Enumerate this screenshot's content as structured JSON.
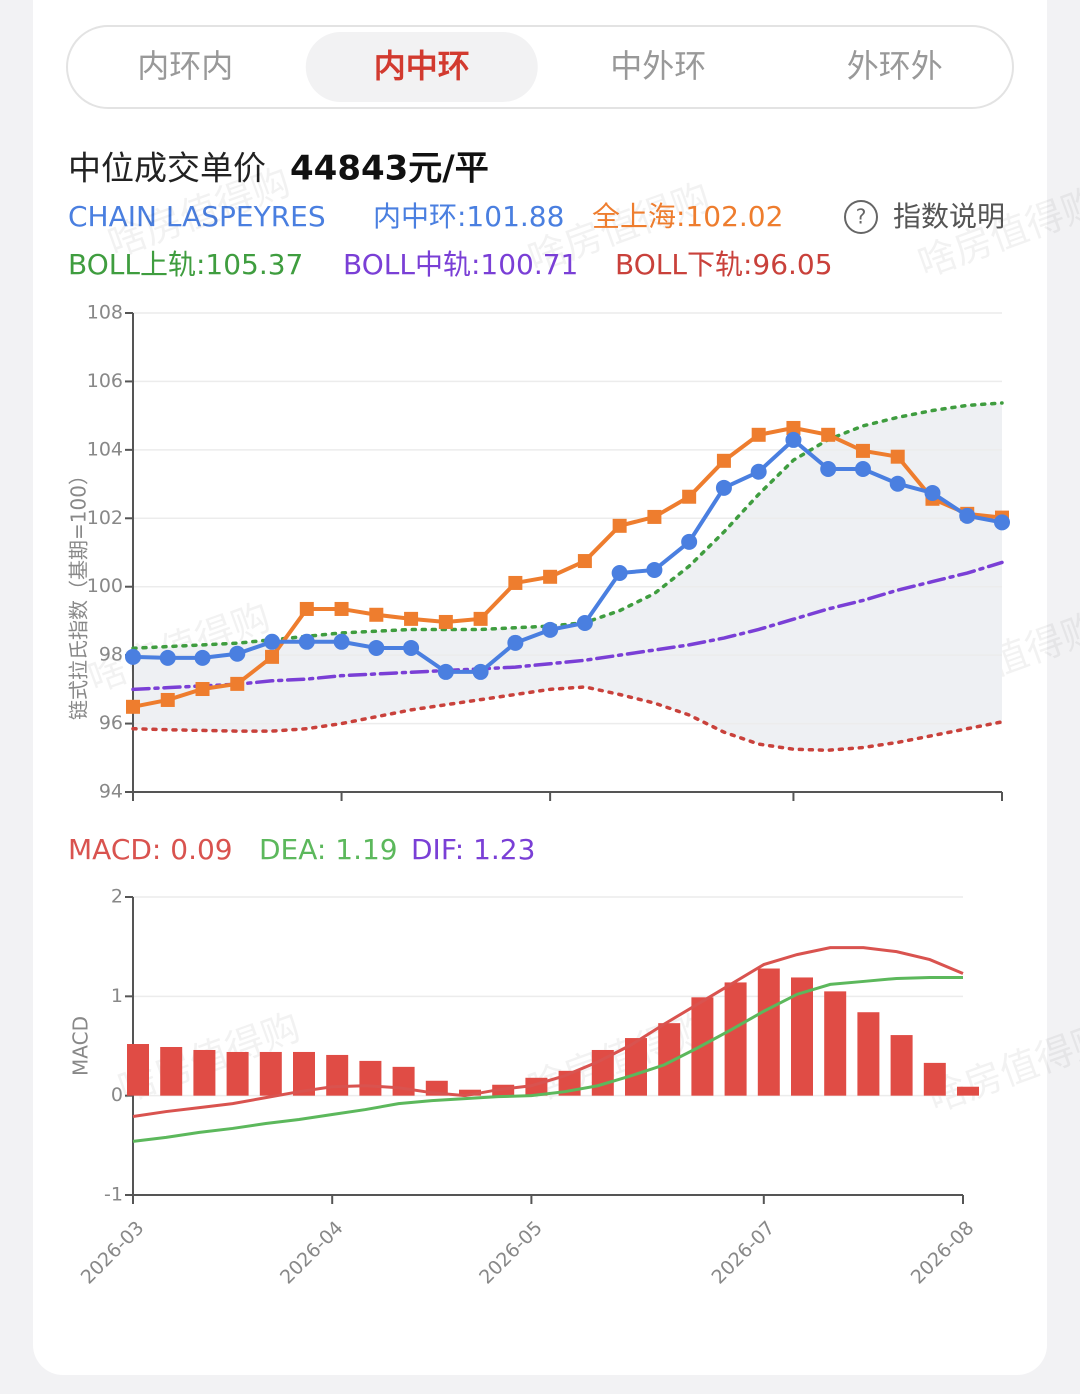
{
  "tabs": [
    "内环内",
    "内中环",
    "中外环",
    "外环外"
  ],
  "active_tab": 1,
  "header": {
    "label": "中位成交单价",
    "price": "44843元/平",
    "index_name": "CHAIN LASPEYRES",
    "help": "指数说明"
  },
  "watermark": "啥房值得购",
  "chart_data": [
    {
      "type": "line",
      "ylabel": "链式拉氏指数（基期=100）",
      "ylim": [
        94,
        108
      ],
      "yticks": [
        94,
        96,
        98,
        100,
        102,
        104,
        106,
        108
      ],
      "grid": true,
      "legend_labels": [
        "内中环:101.88",
        "全上海:102.02",
        "BOLL上轨:105.37",
        "BOLL中轨:100.71",
        "BOLL下轨:96.05"
      ],
      "series": [
        {
          "color": "#4a7fe0",
          "marker": "circle",
          "style": "solid",
          "values": [
            97.95,
            97.92,
            97.92,
            98.04,
            98.39,
            98.39,
            98.39,
            98.21,
            98.21,
            97.51,
            97.51,
            98.36,
            98.74,
            98.94,
            100.4,
            100.49,
            101.31,
            102.89,
            103.36,
            104.29,
            103.44,
            103.44,
            103.01,
            102.74,
            102.07,
            101.88
          ]
        },
        {
          "color": "#ee7d2e",
          "marker": "square",
          "style": "solid",
          "values": [
            96.49,
            96.69,
            97.01,
            97.16,
            97.95,
            99.35,
            99.35,
            99.18,
            99.06,
            98.97,
            99.06,
            100.11,
            100.29,
            100.75,
            101.78,
            102.04,
            102.63,
            103.68,
            104.44,
            104.64,
            104.44,
            103.97,
            103.8,
            102.57,
            102.13,
            102.02
          ]
        },
        {
          "color": "#3f9d3f",
          "marker": "none",
          "style": "dotted",
          "values": [
            98.2,
            98.25,
            98.3,
            98.35,
            98.45,
            98.55,
            98.65,
            98.7,
            98.75,
            98.75,
            98.75,
            98.8,
            98.85,
            98.95,
            99.3,
            99.8,
            100.6,
            101.6,
            102.7,
            103.7,
            104.3,
            104.7,
            104.95,
            105.15,
            105.3,
            105.37
          ]
        },
        {
          "color": "#7a3fd6",
          "marker": "none",
          "style": "dashdot",
          "values": [
            97.0,
            97.05,
            97.1,
            97.15,
            97.25,
            97.3,
            97.4,
            97.45,
            97.5,
            97.55,
            97.6,
            97.65,
            97.75,
            97.85,
            98.0,
            98.15,
            98.3,
            98.5,
            98.75,
            99.05,
            99.35,
            99.6,
            99.9,
            100.15,
            100.4,
            100.71
          ]
        },
        {
          "color": "#c9413b",
          "marker": "none",
          "style": "dotted",
          "values": [
            95.85,
            95.82,
            95.8,
            95.78,
            95.78,
            95.85,
            96.0,
            96.2,
            96.4,
            96.55,
            96.7,
            96.85,
            97.0,
            97.07,
            96.85,
            96.6,
            96.25,
            95.75,
            95.4,
            95.25,
            95.22,
            95.3,
            95.45,
            95.65,
            95.85,
            96.05
          ]
        }
      ]
    },
    {
      "type": "macd",
      "ylabel": "MACD",
      "ylim": [
        -1,
        2
      ],
      "yticks": [
        -1,
        0,
        1,
        2
      ],
      "grid": true,
      "categories": [
        "2026-03",
        null,
        null,
        null,
        null,
        null,
        "2026-04",
        null,
        null,
        null,
        null,
        null,
        "2026-05",
        null,
        null,
        null,
        null,
        null,
        null,
        "2026-07",
        null,
        null,
        null,
        null,
        null,
        "2026-08"
      ],
      "legend_labels": [
        "MACD: 0.09",
        "DEA: 1.19",
        "DIF: 1.23"
      ],
      "series": [
        {
          "color": "#e04c45",
          "kind": "bar",
          "values": [
            0.52,
            0.49,
            0.46,
            0.44,
            0.44,
            0.44,
            0.41,
            0.35,
            0.29,
            0.15,
            0.06,
            0.11,
            0.18,
            0.25,
            0.46,
            0.58,
            0.73,
            0.99,
            1.14,
            1.28,
            1.19,
            1.05,
            0.84,
            0.61,
            0.33,
            0.09
          ]
        },
        {
          "color": "#5cb85c",
          "kind": "line",
          "values": [
            -0.46,
            -0.42,
            -0.37,
            -0.33,
            -0.28,
            -0.24,
            -0.19,
            -0.14,
            -0.08,
            -0.05,
            -0.03,
            -0.01,
            0.0,
            0.04,
            0.1,
            0.2,
            0.31,
            0.48,
            0.66,
            0.85,
            1.02,
            1.12,
            1.15,
            1.18,
            1.19,
            1.19
          ]
        },
        {
          "color": "#d9534f",
          "kind": "line",
          "values": [
            -0.21,
            -0.16,
            -0.12,
            -0.08,
            -0.02,
            0.04,
            0.09,
            0.1,
            0.08,
            0.03,
            0.0,
            0.06,
            0.1,
            0.2,
            0.34,
            0.51,
            0.72,
            0.92,
            1.12,
            1.32,
            1.42,
            1.49,
            1.49,
            1.45,
            1.37,
            1.23
          ]
        }
      ]
    }
  ]
}
